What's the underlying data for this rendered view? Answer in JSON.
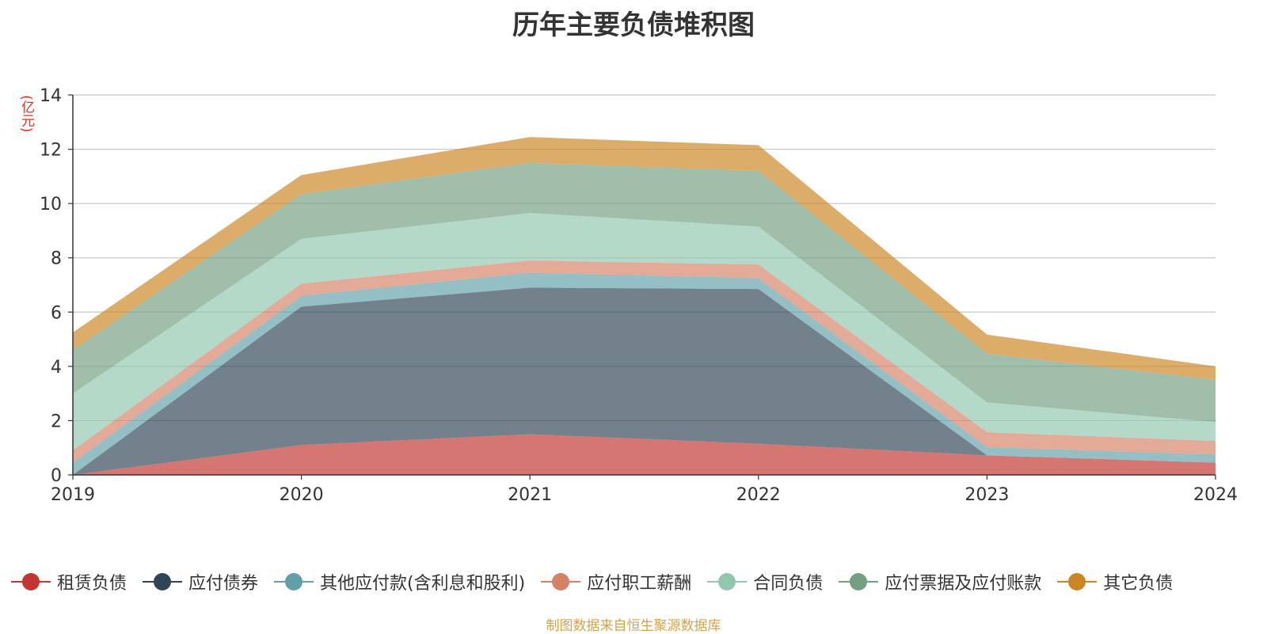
{
  "chart_data": {
    "type": "area",
    "stacked": true,
    "title": "历年主要负债堆积图",
    "unit_label": "亿元",
    "x": [
      "2019",
      "2020",
      "2021",
      "2022",
      "2023",
      "2024"
    ],
    "ylim": [
      0,
      14
    ],
    "yticks": [
      0,
      2,
      4,
      6,
      8,
      10,
      12,
      14
    ],
    "grid": true,
    "legend_position": "bottom",
    "series": [
      {
        "name": "租赁负债",
        "color": "#c23531",
        "values": [
          0,
          1.1,
          1.5,
          1.15,
          0.72,
          0.45
        ]
      },
      {
        "name": "应付债券",
        "color": "#2f4554",
        "values": [
          0,
          5.1,
          5.4,
          5.7,
          0,
          0
        ]
      },
      {
        "name": "其他应付款(含利息和股利)",
        "color": "#61a0a8",
        "values": [
          0.45,
          0.4,
          0.55,
          0.4,
          0.3,
          0.3
        ]
      },
      {
        "name": "应付职工薪酬",
        "color": "#d48265",
        "values": [
          0.45,
          0.45,
          0.45,
          0.5,
          0.55,
          0.5
        ]
      },
      {
        "name": "合同负债",
        "color": "#91c7ae",
        "values": [
          2.1,
          1.65,
          1.75,
          1.4,
          1.1,
          0.7
        ]
      },
      {
        "name": "应付票据及应付账款",
        "color": "#749f83",
        "values": [
          1.6,
          1.65,
          1.85,
          2.05,
          1.8,
          1.55
        ]
      },
      {
        "name": "其它负债",
        "color": "#ca8622",
        "values": [
          0.65,
          0.7,
          0.95,
          0.95,
          0.7,
          0.5
        ]
      }
    ]
  },
  "footer": {
    "source": "制图数据来自恒生聚源数据库"
  }
}
